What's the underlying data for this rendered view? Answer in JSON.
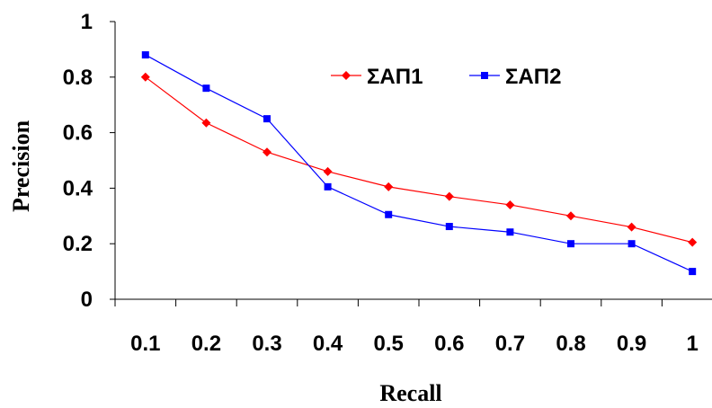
{
  "chart_data": {
    "type": "line",
    "xlabel": "Recall",
    "ylabel": "Precision",
    "categories": [
      "0.1",
      "0.2",
      "0.3",
      "0.4",
      "0.5",
      "0.6",
      "0.7",
      "0.8",
      "0.9",
      "1"
    ],
    "ylim": [
      0,
      1
    ],
    "yticks": [
      "0",
      "0.2",
      "0.4",
      "0.6",
      "0.8",
      "1"
    ],
    "grid": false,
    "legend_position": "top-right",
    "series": [
      {
        "name": "ΣΑΠ1",
        "color": "#ff0000",
        "marker": "diamond",
        "values": [
          0.8,
          0.635,
          0.53,
          0.46,
          0.405,
          0.37,
          0.34,
          0.3,
          0.26,
          0.205
        ]
      },
      {
        "name": "ΣΑΠ2",
        "color": "#0000ff",
        "marker": "square",
        "values": [
          0.88,
          0.76,
          0.65,
          0.405,
          0.305,
          0.262,
          0.242,
          0.2,
          0.2,
          0.1
        ]
      }
    ]
  }
}
